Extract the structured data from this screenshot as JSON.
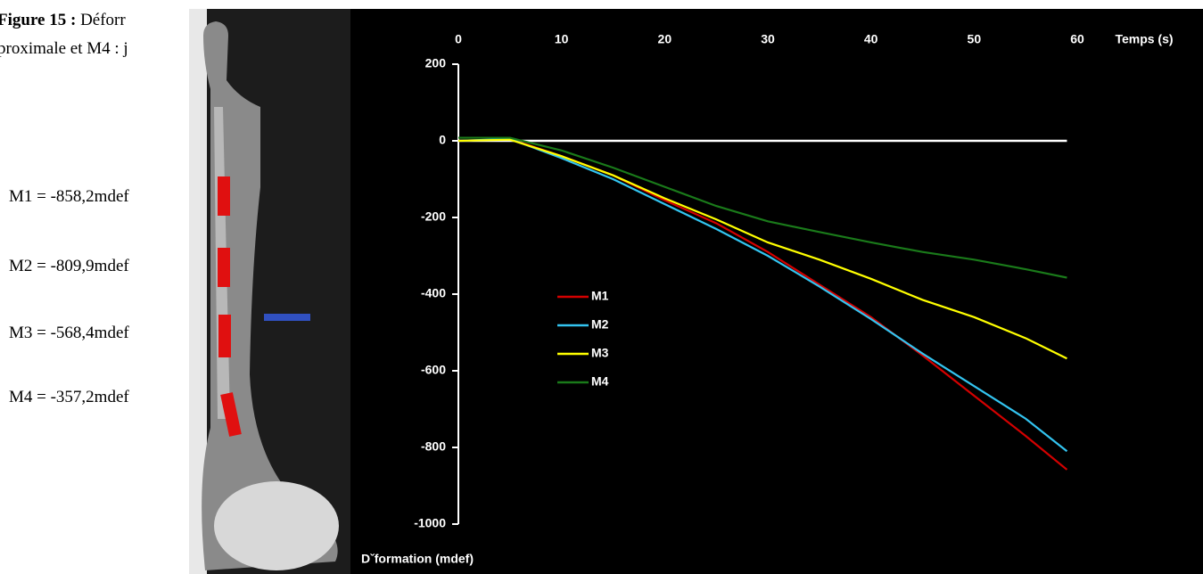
{
  "caption": {
    "label": "Figure 15 :",
    "text": "Déforr",
    "line2": "proximale et M4 : j"
  },
  "annotations": [
    "M1 = -858,2mdef",
    "M2 = -809,9mdef",
    "M3 = -568,4mdef",
    "M4 = -357,2mdef"
  ],
  "chart_data": {
    "type": "line",
    "x_label": "Temps (s)",
    "y_label": "Dˇformation (mdef)",
    "x": [
      0,
      5,
      10,
      15,
      20,
      25,
      30,
      35,
      40,
      45,
      50,
      55,
      59
    ],
    "series": [
      {
        "name": "M1",
        "color": "#d40000",
        "values": [
          0,
          5,
          -40,
          -90,
          -155,
          -215,
          -290,
          -375,
          -460,
          -560,
          -665,
          -770,
          -858
        ]
      },
      {
        "name": "M2",
        "color": "#33c4f0",
        "values": [
          0,
          5,
          -45,
          -100,
          -165,
          -230,
          -300,
          -380,
          -465,
          -555,
          -640,
          -725,
          -810
        ]
      },
      {
        "name": "M3",
        "color": "#ffff00",
        "values": [
          0,
          3,
          -40,
          -90,
          -150,
          -205,
          -265,
          -310,
          -360,
          -415,
          -460,
          -515,
          -568
        ]
      },
      {
        "name": "M4",
        "color": "#1a7a1a",
        "values": [
          8,
          8,
          -25,
          -70,
          -120,
          -170,
          -210,
          -238,
          -265,
          -290,
          -310,
          -335,
          -357
        ]
      }
    ],
    "xlim": [
      0,
      60
    ],
    "xticks": [
      0,
      10,
      20,
      30,
      40,
      50,
      60
    ],
    "ylim": [
      -1000,
      200
    ],
    "yticks": [
      200,
      0,
      -200,
      -400,
      -600,
      -800,
      -1000
    ]
  }
}
